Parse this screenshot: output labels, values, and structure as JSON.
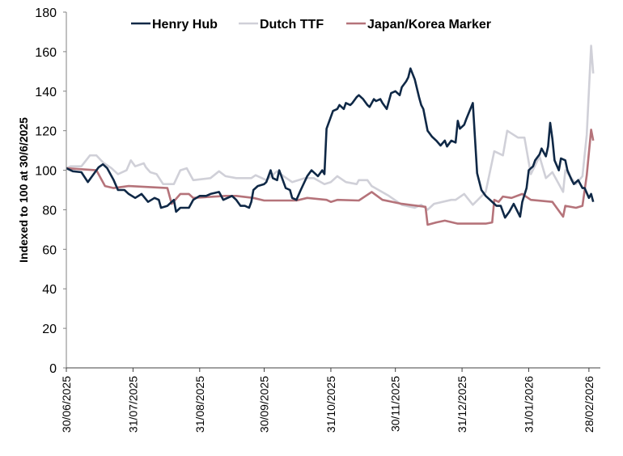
{
  "chart_data": {
    "type": "line",
    "title": "",
    "xlabel": "",
    "ylabel": "Indexed to 100 at 30/6/2025",
    "ylim": [
      0,
      180
    ],
    "yticks": [
      0,
      20,
      40,
      60,
      80,
      100,
      120,
      140,
      160,
      180
    ],
    "x_unit": "days since 30/06/2025",
    "xlim": [
      0,
      246
    ],
    "xticks": [
      {
        "day": 0,
        "label": "30/06/2025"
      },
      {
        "day": 31,
        "label": "31/07/2025"
      },
      {
        "day": 62,
        "label": "31/08/2025"
      },
      {
        "day": 92,
        "label": "30/09/2025"
      },
      {
        "day": 123,
        "label": "31/10/2025"
      },
      {
        "day": 153,
        "label": "30/11/2025"
      },
      {
        "day": 184,
        "label": "31/12/2025"
      },
      {
        "day": 215,
        "label": "31/01/2026"
      },
      {
        "day": 243,
        "label": "28/02/2026"
      }
    ],
    "grid": false,
    "legend_position": "top",
    "series": [
      {
        "name": "Henry Hub",
        "color": "#0f2846",
        "points": [
          [
            0,
            101
          ],
          [
            3,
            99.5
          ],
          [
            7,
            99
          ],
          [
            10,
            94
          ],
          [
            12,
            97
          ],
          [
            15,
            101.5
          ],
          [
            17,
            103
          ],
          [
            19,
            101
          ],
          [
            22,
            95
          ],
          [
            24,
            90
          ],
          [
            27,
            90
          ],
          [
            29,
            88
          ],
          [
            32,
            86
          ],
          [
            35,
            88
          ],
          [
            38,
            84
          ],
          [
            41,
            86
          ],
          [
            43,
            85
          ],
          [
            44,
            81
          ],
          [
            47,
            82
          ],
          [
            50,
            85
          ],
          [
            51,
            79
          ],
          [
            53,
            81
          ],
          [
            57,
            81
          ],
          [
            59,
            85
          ],
          [
            62,
            87
          ],
          [
            65,
            87
          ],
          [
            67,
            88
          ],
          [
            71,
            89
          ],
          [
            73,
            85
          ],
          [
            77,
            87
          ],
          [
            79,
            85
          ],
          [
            81,
            82
          ],
          [
            83,
            82
          ],
          [
            85,
            81
          ],
          [
            86,
            84
          ],
          [
            87,
            90
          ],
          [
            89,
            92
          ],
          [
            92,
            93
          ],
          [
            93,
            94
          ],
          [
            95,
            100
          ],
          [
            96,
            96
          ],
          [
            98,
            95
          ],
          [
            99,
            100
          ],
          [
            102,
            91
          ],
          [
            104,
            90
          ],
          [
            105,
            86
          ],
          [
            107,
            85
          ],
          [
            109,
            90
          ],
          [
            112,
            97
          ],
          [
            114,
            100
          ],
          [
            117,
            97
          ],
          [
            119,
            100
          ],
          [
            120,
            98
          ],
          [
            121,
            121
          ],
          [
            123,
            127
          ],
          [
            124,
            130
          ],
          [
            126,
            131
          ],
          [
            127,
            133
          ],
          [
            129,
            131
          ],
          [
            130,
            134
          ],
          [
            132,
            133
          ],
          [
            133,
            134
          ],
          [
            135,
            137
          ],
          [
            136,
            138
          ],
          [
            138,
            136
          ],
          [
            140,
            133
          ],
          [
            141,
            132
          ],
          [
            143,
            136
          ],
          [
            144,
            135
          ],
          [
            146,
            136
          ],
          [
            147,
            134
          ],
          [
            149,
            131
          ],
          [
            151,
            139
          ],
          [
            153,
            140
          ],
          [
            155,
            138
          ],
          [
            156,
            142
          ],
          [
            158,
            145
          ],
          [
            159,
            147
          ],
          [
            160,
            151.5
          ],
          [
            162,
            146
          ],
          [
            164,
            137
          ],
          [
            165,
            133
          ],
          [
            166,
            131
          ],
          [
            168,
            120
          ],
          [
            170,
            117
          ],
          [
            172,
            115
          ],
          [
            174,
            112.5
          ],
          [
            176,
            115
          ],
          [
            177,
            112
          ],
          [
            179,
            115
          ],
          [
            181,
            114
          ],
          [
            182,
            125
          ],
          [
            183,
            121
          ],
          [
            185,
            123
          ],
          [
            186,
            126
          ],
          [
            189,
            134
          ],
          [
            191,
            98.5
          ],
          [
            193,
            90
          ],
          [
            195,
            87
          ],
          [
            197,
            85
          ],
          [
            200,
            82
          ],
          [
            202,
            82
          ],
          [
            204,
            76
          ],
          [
            206,
            79
          ],
          [
            208,
            83
          ],
          [
            211,
            76.5
          ],
          [
            212,
            84
          ],
          [
            214,
            91
          ],
          [
            215,
            100
          ],
          [
            217,
            102
          ],
          [
            218,
            105
          ],
          [
            220,
            108
          ],
          [
            221,
            111
          ],
          [
            223,
            107
          ],
          [
            224,
            112
          ],
          [
            225,
            124
          ],
          [
            226,
            116
          ],
          [
            227,
            105
          ],
          [
            229,
            100
          ],
          [
            230,
            106
          ],
          [
            232,
            105
          ],
          [
            233,
            100
          ],
          [
            235,
            95
          ],
          [
            236,
            93
          ],
          [
            238,
            95
          ],
          [
            240,
            91
          ],
          [
            241,
            91
          ],
          [
            243,
            86
          ],
          [
            244,
            88
          ],
          [
            245,
            84
          ]
        ]
      },
      {
        "name": "Dutch TTF",
        "color": "#d0d0d8",
        "points": [
          [
            0,
            101
          ],
          [
            2,
            102
          ],
          [
            7,
            102
          ],
          [
            11,
            107.5
          ],
          [
            14,
            107.5
          ],
          [
            17,
            104
          ],
          [
            21,
            101
          ],
          [
            24,
            98
          ],
          [
            28,
            100
          ],
          [
            30,
            105
          ],
          [
            32,
            102
          ],
          [
            36,
            103.5
          ],
          [
            37,
            101.5
          ],
          [
            39,
            99
          ],
          [
            42,
            98
          ],
          [
            45,
            93
          ],
          [
            50,
            93
          ],
          [
            53,
            100
          ],
          [
            56,
            101
          ],
          [
            59,
            95
          ],
          [
            63,
            95.5
          ],
          [
            67,
            96
          ],
          [
            71,
            99.5
          ],
          [
            74,
            97
          ],
          [
            79,
            96
          ],
          [
            86,
            96
          ],
          [
            88,
            97.5
          ],
          [
            93,
            95
          ],
          [
            98,
            99.5
          ],
          [
            101,
            97
          ],
          [
            105,
            94
          ],
          [
            111,
            96
          ],
          [
            115,
            96
          ],
          [
            120,
            93
          ],
          [
            123,
            94
          ],
          [
            126,
            97
          ],
          [
            130,
            94
          ],
          [
            135,
            93
          ],
          [
            136,
            95
          ],
          [
            140,
            95
          ],
          [
            142,
            92
          ],
          [
            150,
            87
          ],
          [
            156,
            82.5
          ],
          [
            162,
            81
          ],
          [
            165,
            82.5
          ],
          [
            168,
            80
          ],
          [
            171,
            83
          ],
          [
            179,
            85
          ],
          [
            181,
            85
          ],
          [
            185,
            88
          ],
          [
            189,
            82.5
          ],
          [
            195,
            89
          ],
          [
            199,
            109.6
          ],
          [
            203,
            107.5
          ],
          [
            205,
            120
          ],
          [
            210,
            116.5
          ],
          [
            213,
            116.5
          ],
          [
            216,
            98
          ],
          [
            220,
            107
          ],
          [
            223,
            96
          ],
          [
            226,
            99
          ],
          [
            231,
            89
          ],
          [
            232,
            100
          ],
          [
            237,
            93
          ],
          [
            240,
            97
          ],
          [
            242,
            118
          ],
          [
            244,
            163
          ],
          [
            245,
            149
          ]
        ]
      },
      {
        "name": "Japan/Korea Marker",
        "color": "#b5737a",
        "points": [
          [
            0,
            101
          ],
          [
            14,
            100
          ],
          [
            18,
            92
          ],
          [
            22,
            91
          ],
          [
            29,
            92
          ],
          [
            47,
            91
          ],
          [
            49,
            83
          ],
          [
            53,
            88
          ],
          [
            57,
            88
          ],
          [
            59,
            86
          ],
          [
            74,
            87
          ],
          [
            79,
            87
          ],
          [
            87,
            86
          ],
          [
            92,
            84.7
          ],
          [
            107,
            84.7
          ],
          [
            112,
            86
          ],
          [
            121,
            85
          ],
          [
            123,
            84
          ],
          [
            126,
            85
          ],
          [
            136,
            84.7
          ],
          [
            142,
            89
          ],
          [
            147,
            85
          ],
          [
            156,
            83
          ],
          [
            167,
            81.5
          ],
          [
            168,
            72.4
          ],
          [
            172,
            73.6
          ],
          [
            176,
            74.5
          ],
          [
            182,
            73
          ],
          [
            187,
            73
          ],
          [
            195,
            73
          ],
          [
            198,
            73.6
          ],
          [
            199,
            85
          ],
          [
            201,
            84
          ],
          [
            203,
            86.7
          ],
          [
            207,
            86
          ],
          [
            212,
            88
          ],
          [
            216,
            85
          ],
          [
            226,
            84
          ],
          [
            231,
            76.5
          ],
          [
            232,
            82
          ],
          [
            237,
            81
          ],
          [
            240,
            82
          ],
          [
            242,
            97.5
          ],
          [
            244,
            120.5
          ],
          [
            245,
            115
          ]
        ]
      }
    ]
  }
}
